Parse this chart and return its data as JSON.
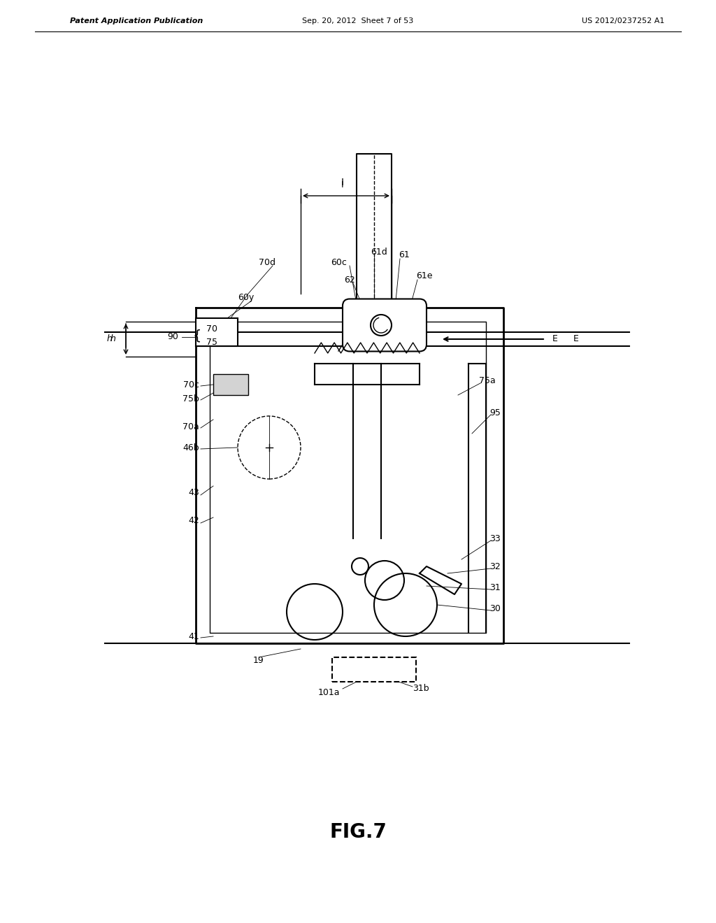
{
  "title": "FIG.7",
  "header_left": "Patent Application Publication",
  "header_center": "Sep. 20, 2012  Sheet 7 of 53",
  "header_right": "US 2012/0237252 A1",
  "bg_color": "#ffffff",
  "line_color": "#000000",
  "label_fontsize": 9,
  "title_fontsize": 20
}
